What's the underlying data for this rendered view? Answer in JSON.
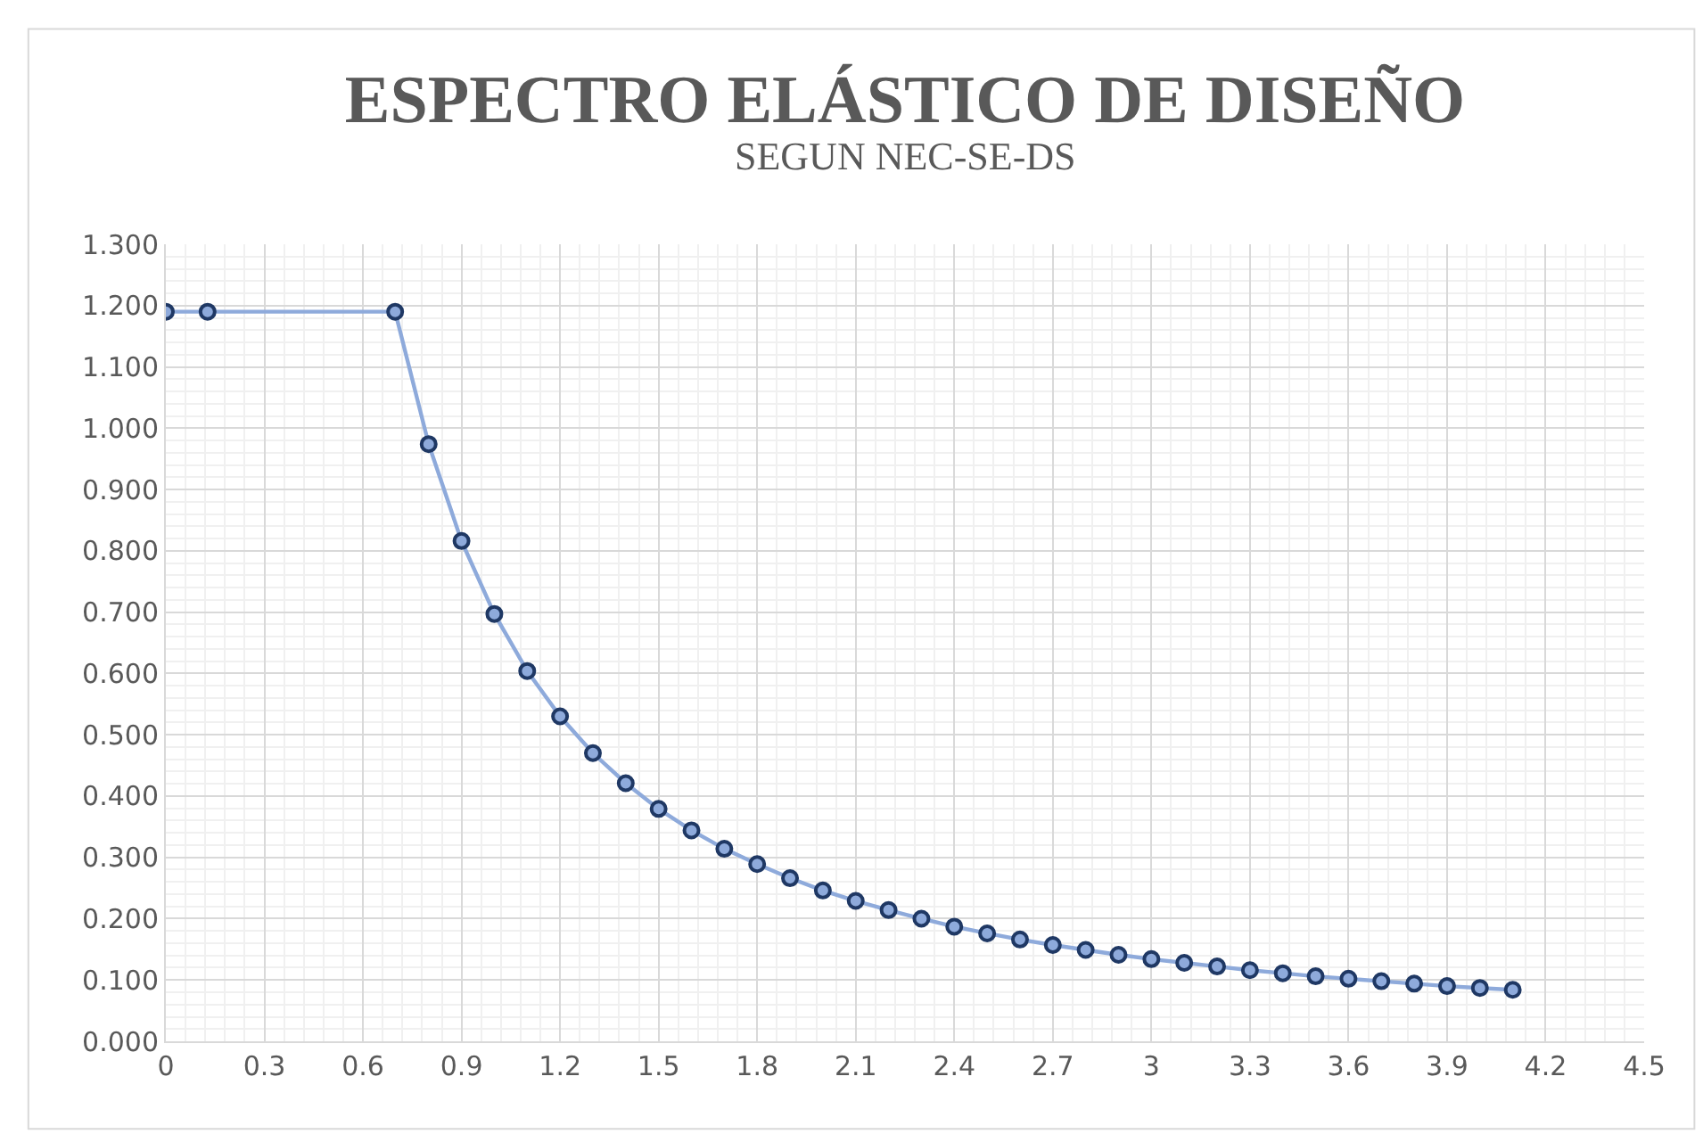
{
  "chart_data": {
    "type": "line",
    "title": "ESPECTRO ELÁSTICO DE DISEÑO",
    "subtitle": "SEGUN NEC-SE-DS",
    "x": [
      0,
      0.127,
      0.698,
      0.8,
      0.9,
      1.0,
      1.1,
      1.2,
      1.3,
      1.4,
      1.5,
      1.6,
      1.7,
      1.8,
      1.9,
      2.0,
      2.1,
      2.2,
      2.3,
      2.4,
      2.5,
      2.6,
      2.7,
      2.8,
      2.9,
      3.0,
      3.1,
      3.2,
      3.3,
      3.4,
      3.5,
      3.6,
      3.7,
      3.8,
      3.9,
      4.0,
      4.1
    ],
    "series": [
      {
        "color": "#8eaadb",
        "values": [
          1.19,
          1.19,
          1.19,
          0.974,
          0.816,
          0.697,
          0.604,
          0.53,
          0.47,
          0.421,
          0.379,
          0.344,
          0.314,
          0.289,
          0.266,
          0.246,
          0.229,
          0.214,
          0.2,
          0.187,
          0.176,
          0.166,
          0.157,
          0.149,
          0.141,
          0.134,
          0.128,
          0.122,
          0.116,
          0.111,
          0.106,
          0.102,
          0.098,
          0.094,
          0.09,
          0.087,
          0.084
        ]
      }
    ],
    "xlim": [
      0,
      4.5
    ],
    "xticks": [
      0,
      0.3,
      0.6,
      0.9,
      1.2,
      1.5,
      1.8,
      2.1,
      2.4,
      2.7,
      3,
      3.3,
      3.6,
      3.9,
      4.2,
      4.5
    ],
    "ylim": [
      0,
      1.3
    ],
    "yticks": [
      {
        "value": 0,
        "label": "0.000"
      },
      {
        "value": 0.1,
        "label": "0.100"
      },
      {
        "value": 0.2,
        "label": "0.200"
      },
      {
        "value": 0.3,
        "label": "0.300"
      },
      {
        "value": 0.4,
        "label": "0.400"
      },
      {
        "value": 0.5,
        "label": "0.500"
      },
      {
        "value": 0.6,
        "label": "0.600"
      },
      {
        "value": 0.7,
        "label": "0.700"
      },
      {
        "value": 0.8,
        "label": "0.800"
      },
      {
        "value": 0.9,
        "label": "0.900"
      },
      {
        "value": 1.0,
        "label": "1.000"
      },
      {
        "value": 1.1,
        "label": "1.100"
      },
      {
        "value": 1.2,
        "label": "1.200"
      },
      {
        "value": 1.3,
        "label": "1.300"
      }
    ],
    "grid": true,
    "marker": "circle",
    "line_style": "solid"
  }
}
